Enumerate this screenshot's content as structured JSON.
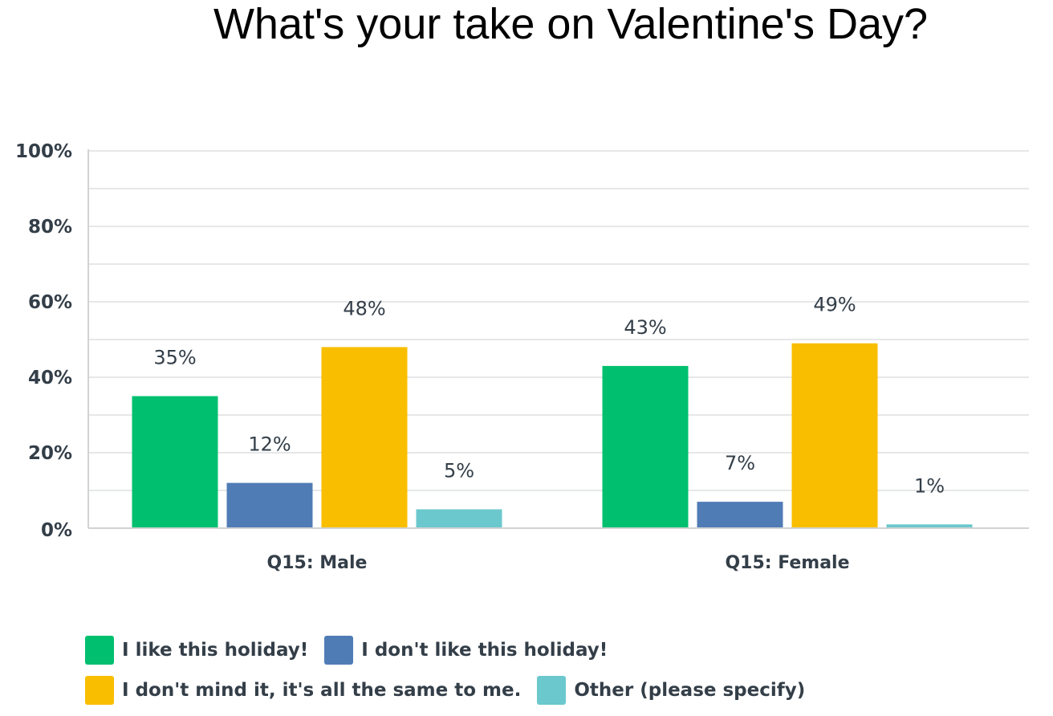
{
  "chart_data": {
    "type": "bar",
    "title": "What's your take on Valentine's Day?",
    "categories": [
      "Q15: Male",
      "Q15: Female"
    ],
    "series": [
      {
        "name": "I like this holiday!",
        "color": "#00bf6f",
        "values": [
          35,
          43
        ]
      },
      {
        "name": "I don't like this holiday!",
        "color": "#507cb6",
        "values": [
          12,
          7
        ]
      },
      {
        "name": "I don't mind it, it's all the same to me.",
        "color": "#f9be00",
        "values": [
          48,
          49
        ]
      },
      {
        "name": "Other (please specify)",
        "color": "#6bc8cd",
        "values": [
          5,
          1
        ]
      }
    ],
    "ylim": [
      0,
      100
    ],
    "yticks": [
      "0%",
      "20%",
      "40%",
      "60%",
      "80%",
      "100%"
    ],
    "grid": true,
    "legend_position": "bottom"
  }
}
